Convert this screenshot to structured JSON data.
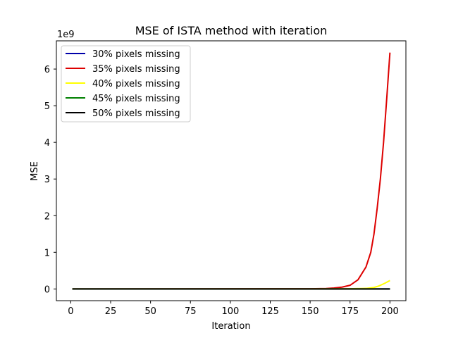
{
  "chart_data": {
    "type": "line",
    "title": "MSE of ISTA method with iteration",
    "xlabel": "Iteration",
    "ylabel": "MSE",
    "y_multiplier_label": "1e9",
    "xlim": [
      -9,
      210
    ],
    "ylim": [
      -0.32,
      6.77
    ],
    "x_ticks": [
      0,
      25,
      50,
      75,
      100,
      125,
      150,
      175,
      200
    ],
    "y_ticks": [
      0,
      1,
      2,
      3,
      4,
      5,
      6
    ],
    "grid": false,
    "legend_position": "top-left",
    "series": [
      {
        "name": "30% pixels missing",
        "color": "#0000aa",
        "x": [
          1,
          50,
          100,
          150,
          200
        ],
        "y": [
          0,
          0,
          0,
          0,
          0
        ]
      },
      {
        "name": "35% pixels missing",
        "color": "#dd0000",
        "x": [
          1,
          150,
          160,
          165,
          170,
          175,
          180,
          185,
          188,
          190,
          192,
          194,
          196,
          198,
          200
        ],
        "y": [
          0,
          0.005,
          0.012,
          0.025,
          0.05,
          0.1,
          0.25,
          0.6,
          1.0,
          1.5,
          2.2,
          3.0,
          4.0,
          5.2,
          6.45
        ]
      },
      {
        "name": "40% pixels missing",
        "color": "#ffff00",
        "x": [
          1,
          150,
          175,
          185,
          190,
          193,
          195,
          197,
          200
        ],
        "y": [
          0,
          0,
          0.005,
          0.015,
          0.04,
          0.08,
          0.12,
          0.16,
          0.23
        ]
      },
      {
        "name": "45% pixels missing",
        "color": "#008000",
        "x": [
          1,
          50,
          100,
          150,
          200
        ],
        "y": [
          0,
          0,
          0,
          0,
          0
        ]
      },
      {
        "name": "50% pixels missing",
        "color": "#000000",
        "x": [
          1,
          50,
          100,
          150,
          200
        ],
        "y": [
          0,
          0,
          0,
          0,
          0
        ]
      }
    ]
  }
}
